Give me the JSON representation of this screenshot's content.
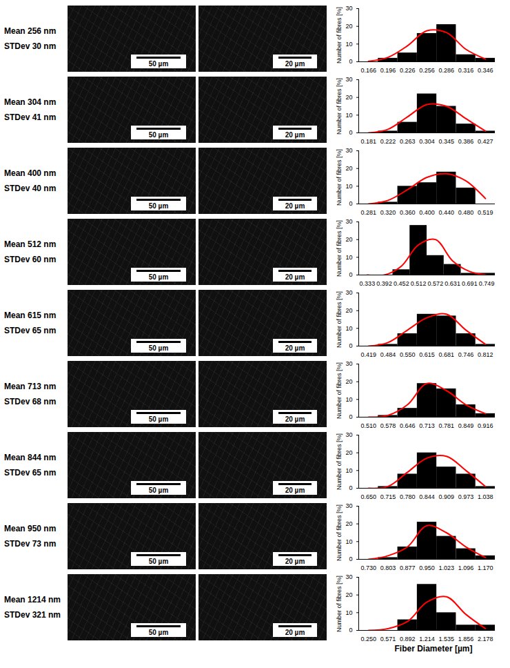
{
  "chart_data": [
    {
      "type": "bar",
      "ylabel": "Number of fibres [%]",
      "annotations": [
        "Mean 256 nm",
        "STDev 30 nm",
        "50 µm",
        "20 µm"
      ],
      "categories": [
        "0.166",
        "0.196",
        "0.226",
        "0.256",
        "0.286",
        "0.316",
        "0.346"
      ],
      "values": [
        0,
        2,
        5,
        16,
        21,
        4,
        2
      ],
      "color": "#000000",
      "series": [
        {
          "type": "line",
          "color": "#ff0000",
          "values": [
            0.3,
            2.5,
            9,
            17.5,
            16.5,
            7,
            1.5
          ]
        }
      ],
      "ylim": [
        0,
        30
      ],
      "yticks": [
        0,
        10,
        20,
        30
      ]
    },
    {
      "type": "bar",
      "ylabel": "Number of fibres [%]",
      "annotations": [
        "Mean 304 nm",
        "STDev 41 nm",
        "50 µm",
        "20 µm"
      ],
      "categories": [
        "0.181",
        "0.222",
        "0.263",
        "0.304",
        "0.345",
        "0.386",
        "0.427"
      ],
      "values": [
        0,
        1,
        6,
        22,
        15,
        5,
        1
      ],
      "color": "#000000",
      "series": [
        {
          "type": "line",
          "color": "#ff0000",
          "values": [
            0,
            2,
            9,
            16,
            15,
            8,
            1
          ]
        }
      ],
      "ylim": [
        0,
        30
      ],
      "yticks": [
        0,
        10,
        20,
        30
      ]
    },
    {
      "type": "bar",
      "ylabel": "Number of fibres [%]",
      "annotations": [
        "Mean 400 nm",
        "STDev 40 nm",
        "50 µm",
        "20 µm"
      ],
      "categories": [
        "0.281",
        "0.320",
        "0.360",
        "0.400",
        "0.440",
        "0.480",
        "0.519"
      ],
      "values": [
        0,
        1,
        10,
        12,
        18,
        9,
        0
      ],
      "color": "#000000",
      "series": [
        {
          "type": "line",
          "color": "#ff0000",
          "values": [
            0,
            2,
            8,
            15,
            17,
            13,
            3
          ]
        }
      ],
      "ylim": [
        0,
        30
      ],
      "yticks": [
        0,
        10,
        20,
        30
      ]
    },
    {
      "type": "bar",
      "ylabel": "Number of fibres [%]",
      "annotations": [
        "Mean 512 nm",
        "STDev 60 nm",
        "50 µm",
        "20 µm"
      ],
      "categories": [
        "0.333",
        "0.392",
        "0.452",
        "0.512",
        "0.572",
        "0.631",
        "0.691",
        "0.749"
      ],
      "values": [
        0,
        0,
        3,
        28,
        11,
        6,
        1,
        1
      ],
      "color": "#000000",
      "series": [
        {
          "type": "line",
          "color": "#ff0000",
          "values": [
            0,
            0,
            5,
            17,
            20,
            8,
            2,
            0
          ]
        }
      ],
      "ylim": [
        0,
        30
      ],
      "yticks": [
        0,
        10,
        20,
        30
      ]
    },
    {
      "type": "bar",
      "ylabel": "Number of fibres [%]",
      "annotations": [
        "Mean 615 nm",
        "STDev 65 nm",
        "50 µm",
        "20 µm"
      ],
      "categories": [
        "0.419",
        "0.484",
        "0.550",
        "0.615",
        "0.681",
        "0.746",
        "0.812"
      ],
      "values": [
        0,
        1,
        7,
        18,
        17,
        7,
        1
      ],
      "color": "#000000",
      "series": [
        {
          "type": "line",
          "color": "#ff0000",
          "values": [
            0,
            2,
            9,
            16,
            18,
            9,
            1
          ]
        }
      ],
      "ylim": [
        0,
        30
      ],
      "yticks": [
        0,
        10,
        20,
        30
      ]
    },
    {
      "type": "bar",
      "ylabel": "Number of fibres [%]",
      "annotations": [
        "Mean 713 nm",
        "STDev 68 nm",
        "50 µm",
        "20 µm"
      ],
      "categories": [
        "0.510",
        "0.578",
        "0.646",
        "0.713",
        "0.781",
        "0.849",
        "0.916"
      ],
      "values": [
        0,
        1,
        5,
        19,
        16,
        7,
        2
      ],
      "color": "#000000",
      "series": [
        {
          "type": "line",
          "color": "#ff0000",
          "values": [
            0,
            1,
            7,
            19,
            15,
            7,
            2
          ]
        }
      ],
      "ylim": [
        0,
        30
      ],
      "yticks": [
        0,
        10,
        20,
        30
      ]
    },
    {
      "type": "bar",
      "ylabel": "Number of fibres [%]",
      "annotations": [
        "Mean 844 nm",
        "STDev 65 nm",
        "50 µm",
        "20 µm"
      ],
      "categories": [
        "0.650",
        "0.715",
        "0.780",
        "0.844",
        "0.909",
        "0.973",
        "1.038"
      ],
      "values": [
        0,
        1,
        8,
        20,
        12,
        8,
        1
      ],
      "color": "#000000",
      "series": [
        {
          "type": "line",
          "color": "#ff0000",
          "values": [
            0,
            1,
            9,
            17,
            18,
            10,
            1
          ]
        }
      ],
      "ylim": [
        0,
        30
      ],
      "yticks": [
        0,
        10,
        20,
        30
      ]
    },
    {
      "type": "bar",
      "ylabel": "Number of fibres [%]",
      "annotations": [
        "Mean 950 nm",
        "STDev 73 nm",
        "50 µm",
        "20 µm"
      ],
      "categories": [
        "0.730",
        "0.803",
        "0.877",
        "0.950",
        "1.023",
        "1.096",
        "1.170"
      ],
      "values": [
        0,
        1,
        7,
        21,
        13,
        6,
        2
      ],
      "color": "#000000",
      "series": [
        {
          "type": "line",
          "color": "#ff0000",
          "values": [
            0,
            2,
            7,
            19,
            15,
            7,
            1
          ]
        }
      ],
      "ylim": [
        0,
        30
      ],
      "yticks": [
        0,
        10,
        20,
        30
      ]
    },
    {
      "type": "bar",
      "ylabel": "Number of fibres [%]",
      "xlabel": "Fiber Diameter [µm]",
      "annotations": [
        "Mean 1214 nm",
        "STDev 321 nm",
        "50 µm",
        "20 µm"
      ],
      "categories": [
        "0.250",
        "0.571",
        "0.892",
        "1.214",
        "1.535",
        "1.856",
        "2.178"
      ],
      "values": [
        0,
        0,
        6,
        26,
        10,
        3,
        3
      ],
      "color": "#000000",
      "series": [
        {
          "type": "line",
          "color": "#ff0000",
          "values": [
            0,
            1,
            5,
            16,
            19,
            9,
            1
          ]
        }
      ],
      "ylim": [
        0,
        30
      ],
      "yticks": [
        0,
        10,
        20,
        30
      ]
    }
  ]
}
